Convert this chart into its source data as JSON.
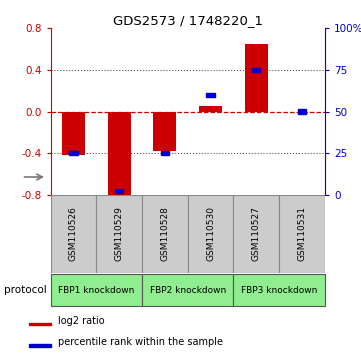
{
  "title": "GDS2573 / 1748220_1",
  "samples": [
    "GSM110526",
    "GSM110529",
    "GSM110528",
    "GSM110530",
    "GSM110527",
    "GSM110531"
  ],
  "log2_ratio": [
    -0.42,
    -0.82,
    -0.38,
    0.05,
    0.65,
    0.0
  ],
  "percentile_rank": [
    25.0,
    2.0,
    25.0,
    60.0,
    75.0,
    50.0
  ],
  "ylim_left": [
    -0.8,
    0.8
  ],
  "ylim_right": [
    0,
    100
  ],
  "y_ticks_left": [
    -0.8,
    -0.4,
    0.0,
    0.4,
    0.8
  ],
  "y_ticks_right": [
    0,
    25,
    50,
    75,
    100
  ],
  "y_tick_labels_right": [
    "0",
    "25",
    "50",
    "75",
    "100%"
  ],
  "protocols": [
    {
      "label": "FBP1 knockdown",
      "span": [
        0,
        2
      ],
      "color": "#90EE90"
    },
    {
      "label": "FBP2 knockdown",
      "span": [
        2,
        4
      ],
      "color": "#90EE90"
    },
    {
      "label": "FBP3 knockdown",
      "span": [
        4,
        6
      ],
      "color": "#90EE90"
    }
  ],
  "bar_color": "#cc0000",
  "percentile_color": "#0000cc",
  "bar_width": 0.5,
  "background_color": "#ffffff",
  "sample_box_color": "#cccccc",
  "legend_items": [
    {
      "label": "log2 ratio",
      "color": "#cc0000"
    },
    {
      "label": "percentile rank within the sample",
      "color": "#0000cc"
    }
  ]
}
